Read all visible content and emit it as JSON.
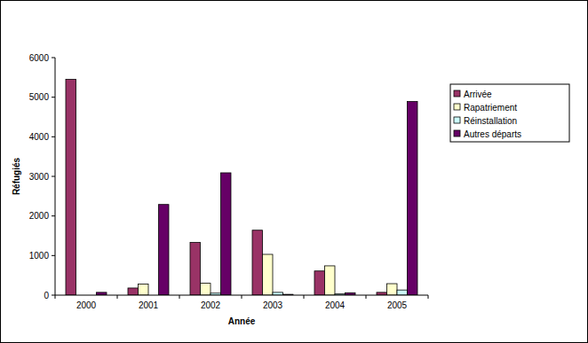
{
  "chart_data": {
    "type": "bar",
    "x_label": "Année",
    "y_label": "Réfugiés",
    "categories": [
      "2000",
      "2001",
      "2002",
      "2003",
      "2004",
      "2005"
    ],
    "series": [
      {
        "name": "Arrivée",
        "color": "#993366",
        "values": [
          5450,
          180,
          1330,
          1640,
          610,
          70
        ]
      },
      {
        "name": "Rapatriement",
        "color": "#ffffcc",
        "values": [
          0,
          280,
          300,
          1030,
          740,
          290
        ]
      },
      {
        "name": "Réinstallation",
        "color": "#ccffff",
        "values": [
          0,
          0,
          50,
          70,
          30,
          130
        ]
      },
      {
        "name": "Autres départs",
        "color": "#660066",
        "values": [
          70,
          2290,
          3090,
          20,
          60,
          4890
        ]
      }
    ],
    "ylim": [
      0,
      6000
    ],
    "yticks": [
      0,
      1000,
      2000,
      3000,
      4000,
      5000,
      6000
    ],
    "grid": false,
    "legend": "right"
  }
}
